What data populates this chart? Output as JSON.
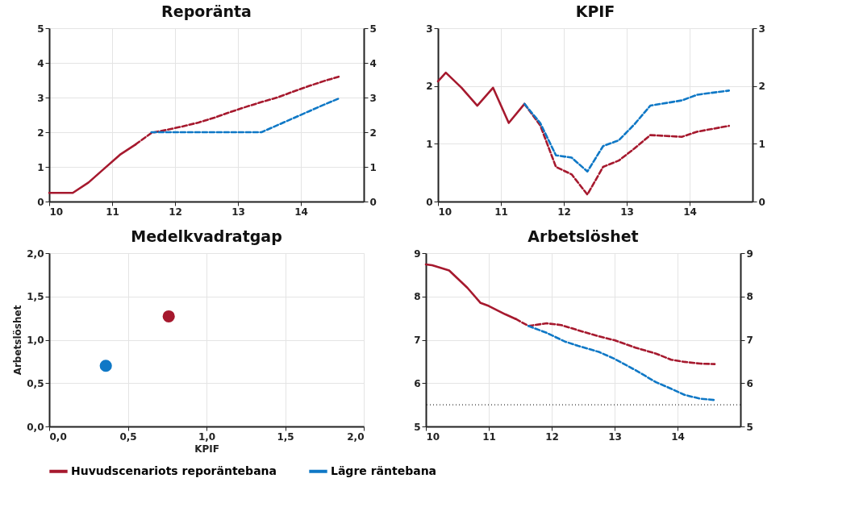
{
  "chart_data": [
    {
      "type": "line",
      "title": "Reporänta",
      "xlim": [
        10,
        15
      ],
      "xticks": [
        10,
        11,
        12,
        13,
        14
      ],
      "ylim": [
        0,
        5
      ],
      "yticks": [
        0,
        1,
        2,
        3,
        4,
        5
      ],
      "y2lim": [
        0,
        5
      ],
      "y2ticks": [
        0,
        1,
        2,
        3,
        4,
        5
      ],
      "grid": true,
      "series": [
        {
          "color": "#a6192e",
          "line_style": "solid",
          "x": [
            10,
            10.375,
            10.625,
            10.875,
            11.125,
            11.375
          ],
          "values": [
            0.25,
            0.25,
            0.55,
            0.95,
            1.35,
            1.65
          ]
        },
        {
          "color": "#a6192e",
          "line_style": "dashed",
          "x": [
            11.375,
            11.625,
            11.875,
            12.125,
            12.375,
            12.625,
            12.875,
            13.125,
            13.375,
            13.625,
            13.875,
            14.125,
            14.375,
            14.6
          ],
          "values": [
            1.65,
            1.98,
            2.07,
            2.17,
            2.28,
            2.42,
            2.58,
            2.73,
            2.87,
            3.0,
            3.17,
            3.33,
            3.48,
            3.6
          ]
        },
        {
          "color": "#0f78c6",
          "line_style": "dashed",
          "x": [
            11.625,
            13.375,
            13.625,
            13.875,
            14.125,
            14.375,
            14.6
          ],
          "values": [
            2.0,
            2.0,
            2.2,
            2.4,
            2.6,
            2.8,
            2.97
          ]
        }
      ]
    },
    {
      "type": "line",
      "title": "KPIF",
      "xlim": [
        10,
        15
      ],
      "xticks": [
        10,
        11,
        12,
        13,
        14
      ],
      "ylim": [
        0,
        3
      ],
      "yticks": [
        0,
        1,
        2,
        3
      ],
      "y2lim": [
        0,
        3
      ],
      "y2ticks": [
        0,
        1,
        2,
        3
      ],
      "grid": true,
      "series": [
        {
          "color": "#a6192e",
          "line_style": "solid",
          "x": [
            10,
            10.125,
            10.375,
            10.625,
            10.875,
            11.125,
            11.375
          ],
          "values": [
            2.08,
            2.23,
            1.97,
            1.66,
            1.97,
            1.36,
            1.69
          ]
        },
        {
          "color": "#a6192e",
          "line_style": "dashed",
          "x": [
            11.375,
            11.625,
            11.875,
            12.125,
            12.375,
            12.625,
            12.875,
            13.125,
            13.375,
            13.875,
            14.125,
            14.625
          ],
          "values": [
            1.69,
            1.32,
            0.6,
            0.47,
            0.12,
            0.6,
            0.71,
            0.92,
            1.15,
            1.12,
            1.21,
            1.31
          ]
        },
        {
          "color": "#0f78c6",
          "line_style": "dashed",
          "x": [
            11.375,
            11.625,
            11.875,
            12.125,
            12.375,
            12.625,
            12.875,
            13.125,
            13.375,
            13.875,
            14.125,
            14.625
          ],
          "values": [
            1.69,
            1.36,
            0.8,
            0.76,
            0.52,
            0.96,
            1.06,
            1.34,
            1.66,
            1.75,
            1.85,
            1.92
          ]
        }
      ]
    },
    {
      "type": "scatter",
      "title": "Medelkvadratgap",
      "xlabel": "KPIF",
      "ylabel": "Arbetslöshet",
      "xlim": [
        0,
        2
      ],
      "xticks": [
        {
          "value": 0,
          "label": "0,0"
        },
        {
          "value": 0.5,
          "label": "0,5"
        },
        {
          "value": 1,
          "label": "1,0"
        },
        {
          "value": 1.5,
          "label": "1,5"
        },
        {
          "value": 2,
          "label": "2,0"
        }
      ],
      "ylim": [
        0,
        2
      ],
      "yticks": [
        {
          "value": 0,
          "label": "0,0"
        },
        {
          "value": 0.5,
          "label": "0,5"
        },
        {
          "value": 1,
          "label": "1,0"
        },
        {
          "value": 1.5,
          "label": "1,5"
        },
        {
          "value": 2,
          "label": "2,0"
        }
      ],
      "grid": true,
      "legend": "bottom",
      "marker": "circle",
      "series": [
        {
          "name": "Huvudscenariots reporäntebana",
          "color": "#a6192e",
          "x": [
            0.76
          ],
          "values": [
            1.27
          ]
        },
        {
          "name": "Lägre räntebana",
          "color": "#0f78c6",
          "x": [
            0.36
          ],
          "values": [
            0.7
          ]
        }
      ]
    },
    {
      "type": "line",
      "title": "Arbetslöshet",
      "xlim": [
        10,
        15
      ],
      "xticks": [
        10,
        11,
        12,
        13,
        14
      ],
      "ylim": [
        5,
        9
      ],
      "yticks": [
        5,
        6,
        7,
        8,
        9
      ],
      "y2lim": [
        5,
        9
      ],
      "y2ticks": [
        5,
        6,
        7,
        8,
        9
      ],
      "grid": true,
      "ref_lines": [
        {
          "axis": "y",
          "value": 5.5,
          "color": "#333333",
          "line_style": "dotted"
        }
      ],
      "series": [
        {
          "color": "#a6192e",
          "line_style": "solid",
          "x": [
            10,
            10.1,
            10.37,
            10.66,
            10.87,
            11.0,
            11.26,
            11.43
          ],
          "values": [
            8.74,
            8.72,
            8.6,
            8.2,
            7.85,
            7.78,
            7.59,
            7.48
          ]
        },
        {
          "color": "#a6192e",
          "line_style": "dashed",
          "x": [
            11.43,
            11.63,
            11.92,
            12.15,
            12.42,
            12.75,
            13.0,
            13.33,
            13.66,
            13.9,
            14.11,
            14.36,
            14.59
          ],
          "values": [
            7.48,
            7.32,
            7.38,
            7.34,
            7.22,
            7.08,
            6.99,
            6.82,
            6.68,
            6.54,
            6.49,
            6.45,
            6.44
          ]
        },
        {
          "color": "#0f78c6",
          "line_style": "dashed",
          "x": [
            11.63,
            11.92,
            12.21,
            12.42,
            12.75,
            13.0,
            13.33,
            13.66,
            13.9,
            14.11,
            14.36,
            14.59
          ],
          "values": [
            7.32,
            7.16,
            6.96,
            6.86,
            6.72,
            6.56,
            6.3,
            6.02,
            5.87,
            5.73,
            5.64,
            5.61
          ]
        }
      ]
    }
  ]
}
